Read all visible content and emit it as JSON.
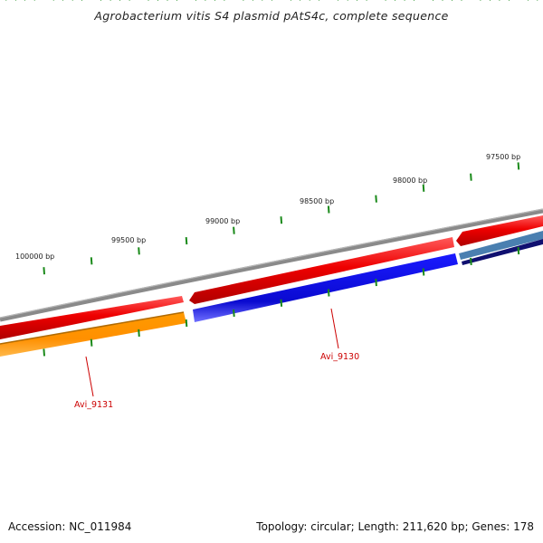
{
  "title": "Agrobacterium vitis S4 plasmid pAtS4c, complete sequence",
  "footer": {
    "accession": "Accession: NC_011984",
    "summary": "Topology: circular; Length: 211,620 bp; Genes: 178"
  },
  "colors": {
    "backbone": "#8a8a8a",
    "tick": "#1a8a1a",
    "forward_gene": "#ee0000",
    "reverse_gene": "#1010dd",
    "orange_gene": "#ff9900",
    "steelblue_gene": "#4a7fb0",
    "navy_gene": "#101070",
    "label": "#cc0000"
  },
  "scale_labels": [
    {
      "text": "100000 bp",
      "bp": 100000
    },
    {
      "text": "99500 bp",
      "bp": 99500
    },
    {
      "text": "99000 bp",
      "bp": 99000
    },
    {
      "text": "98500 bp",
      "bp": 98500
    },
    {
      "text": "98000 bp",
      "bp": 98000
    },
    {
      "text": "97500 bp",
      "bp": 97500
    }
  ],
  "gene_labels": [
    {
      "name": "Avi_9131"
    },
    {
      "name": "Avi_9130"
    }
  ]
}
